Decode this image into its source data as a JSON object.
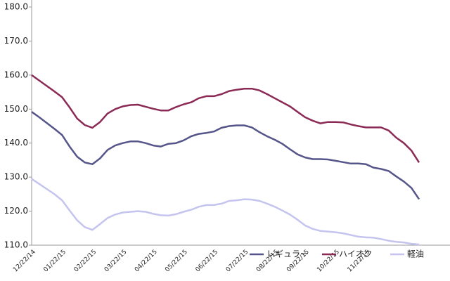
{
  "chart_data": {
    "type": "line",
    "categories": [
      "12/22/14",
      null,
      null,
      null,
      "01/22/15",
      null,
      null,
      null,
      "02/22/15",
      null,
      null,
      null,
      "03/22/15",
      null,
      null,
      null,
      "04/22/15",
      null,
      null,
      null,
      "05/22/15",
      null,
      null,
      null,
      "06/22/15",
      null,
      null,
      null,
      "07/22/15",
      null,
      null,
      null,
      "08/22/15",
      null,
      null,
      null,
      "09/22/15",
      null,
      null,
      null,
      "10/22/15",
      null,
      null,
      null,
      "11/22/15",
      null,
      null,
      null,
      null,
      null,
      null,
      null
    ],
    "series": [
      {
        "name": "レギュラー",
        "color": "#55558a",
        "values": [
          149.2,
          147.6,
          145.9,
          144.2,
          142.4,
          139,
          136,
          134.3,
          133.8,
          135.5,
          138,
          139.3,
          140,
          140.5,
          140.5,
          140,
          139.3,
          139,
          139.8,
          140,
          140.8,
          142,
          142.7,
          143,
          143.4,
          144.5,
          145,
          145.2,
          145.2,
          144.6,
          143.2,
          142,
          141,
          139.8,
          138.2,
          136.7,
          135.8,
          135.3,
          135.3,
          135.2,
          134.8,
          134.4,
          134,
          134,
          133.8,
          132.8,
          132.4,
          131.8,
          130.2,
          128.7,
          126.8,
          123.5
        ]
      },
      {
        "name": "ハイオク",
        "color": "#8b2a55",
        "values": [
          160,
          158.4,
          156.8,
          155.2,
          153.5,
          150.5,
          147.2,
          145.3,
          144.5,
          146.2,
          148.7,
          150,
          150.8,
          151.2,
          151.3,
          150.7,
          150.1,
          149.6,
          149.6,
          150.6,
          151.4,
          152,
          153.2,
          153.8,
          153.8,
          154.4,
          155.3,
          155.7,
          156,
          156,
          155.5,
          154.4,
          153.2,
          152,
          150.8,
          149.2,
          147.6,
          146.6,
          145.8,
          146.2,
          146.2,
          146.1,
          145.5,
          145,
          144.6,
          144.6,
          144.6,
          143.7,
          141.6,
          140,
          137.8,
          134.3
        ]
      },
      {
        "name": "軽油",
        "color": "#c4c4ee",
        "values": [
          129.5,
          128,
          126.5,
          125,
          123.2,
          120.2,
          117.3,
          115.3,
          114.5,
          116.2,
          118,
          119,
          119.6,
          119.8,
          120,
          119.8,
          119.2,
          118.8,
          118.7,
          119.1,
          119.8,
          120.4,
          121.3,
          121.8,
          121.8,
          122.2,
          123,
          123.2,
          123.5,
          123.4,
          123,
          122.2,
          121.3,
          120.2,
          119,
          117.5,
          115.8,
          114.8,
          114.2,
          114,
          113.8,
          113.5,
          113,
          112.5,
          112.3,
          112.2,
          111.8,
          111.3,
          111,
          110.8,
          110.4,
          110.2
        ]
      }
    ],
    "ylim": [
      110,
      180
    ],
    "yticks": [
      {
        "value": 110,
        "label": "110.0"
      },
      {
        "value": 120,
        "label": "120.0"
      },
      {
        "value": 130,
        "label": "130.0"
      },
      {
        "value": 140,
        "label": "140.0"
      },
      {
        "value": 150,
        "label": "150.0"
      },
      {
        "value": 160,
        "label": "160.0"
      },
      {
        "value": 170,
        "label": "170.0"
      },
      {
        "value": 180,
        "label": "180.0"
      }
    ],
    "legend": "bottom-right",
    "grid": false
  }
}
